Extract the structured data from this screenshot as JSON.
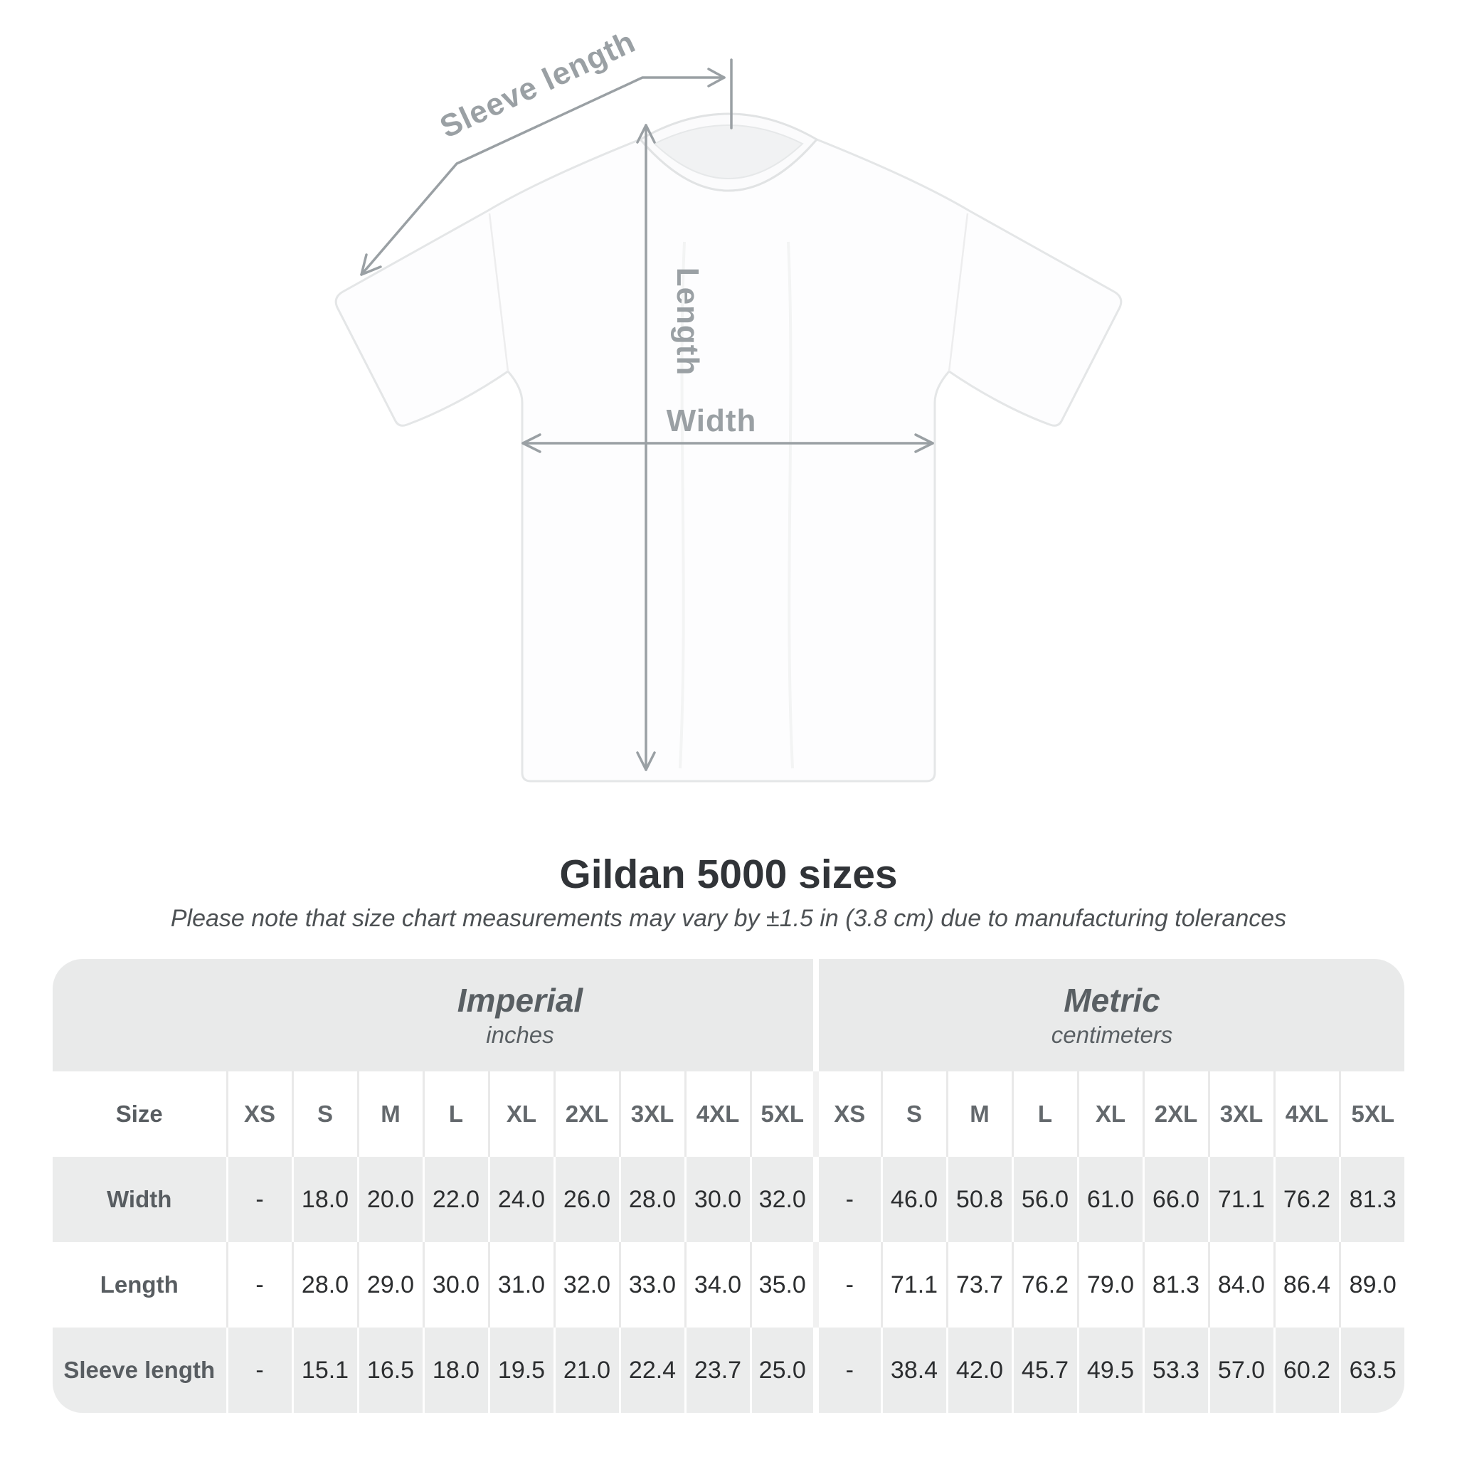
{
  "diagram": {
    "labels": {
      "sleeve_length": "Sleeve length",
      "length": "Length",
      "width": "Width"
    },
    "line_color": "#9aa0a4"
  },
  "title": "Gildan 5000 sizes",
  "subtitle": "Please note that size chart measurements may vary by ±1.5 in (3.8 cm) due to manufacturing tolerances",
  "table": {
    "size_header": "Size",
    "unit_groups": [
      {
        "title": "Imperial",
        "unit": "inches"
      },
      {
        "title": "Metric",
        "unit": "centimeters"
      }
    ],
    "sizes": [
      "XS",
      "S",
      "M",
      "L",
      "XL",
      "2XL",
      "3XL",
      "4XL",
      "5XL"
    ],
    "rows": [
      {
        "label": "Width",
        "imperial": [
          "-",
          "18.0",
          "20.0",
          "22.0",
          "24.0",
          "26.0",
          "28.0",
          "30.0",
          "32.0"
        ],
        "metric": [
          "-",
          "46.0",
          "50.8",
          "56.0",
          "61.0",
          "66.0",
          "71.1",
          "76.2",
          "81.3"
        ]
      },
      {
        "label": "Length",
        "imperial": [
          "-",
          "28.0",
          "29.0",
          "30.0",
          "31.0",
          "32.0",
          "33.0",
          "34.0",
          "35.0"
        ],
        "metric": [
          "-",
          "71.1",
          "73.7",
          "76.2",
          "79.0",
          "81.3",
          "84.0",
          "86.4",
          "89.0"
        ]
      },
      {
        "label": "Sleeve length",
        "imperial": [
          "-",
          "15.1",
          "16.5",
          "18.0",
          "19.5",
          "21.0",
          "22.4",
          "23.7",
          "25.0"
        ],
        "metric": [
          "-",
          "38.4",
          "42.0",
          "45.7",
          "49.5",
          "53.3",
          "57.0",
          "60.2",
          "63.5"
        ]
      }
    ]
  }
}
